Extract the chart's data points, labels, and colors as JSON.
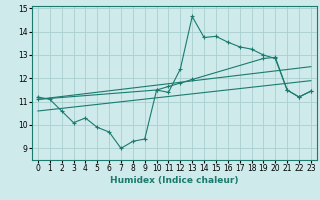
{
  "xlabel": "Humidex (Indice chaleur)",
  "bg_color": "#ceeaea",
  "grid_color": "#aacfcf",
  "line_color": "#1a7a6e",
  "xlim": [
    -0.5,
    23.5
  ],
  "ylim": [
    8.5,
    15.1
  ],
  "yticks": [
    9,
    10,
    11,
    12,
    13,
    14,
    15
  ],
  "xticks": [
    0,
    1,
    2,
    3,
    4,
    5,
    6,
    7,
    8,
    9,
    10,
    11,
    12,
    13,
    14,
    15,
    16,
    17,
    18,
    19,
    20,
    21,
    22,
    23
  ],
  "series": [
    {
      "x": [
        0,
        1,
        2,
        3,
        4,
        5,
        6,
        7,
        8,
        9,
        10,
        11,
        12,
        13,
        14,
        15,
        16,
        17,
        18,
        19,
        20,
        21,
        22,
        23
      ],
      "y": [
        11.2,
        11.1,
        10.6,
        10.1,
        10.3,
        9.9,
        9.7,
        9.0,
        9.3,
        9.4,
        11.5,
        11.4,
        12.4,
        14.65,
        13.75,
        13.8,
        13.55,
        13.35,
        13.25,
        13.0,
        12.85,
        11.5,
        11.2,
        11.45
      ],
      "marker_x": [
        0,
        1,
        2,
        3,
        4,
        5,
        6,
        7,
        8,
        9,
        10,
        11,
        12,
        13,
        14,
        15,
        16,
        17,
        18,
        19,
        20,
        21,
        22,
        23
      ]
    },
    {
      "x": [
        0,
        10,
        11,
        12,
        13,
        19,
        20,
        21,
        22,
        23
      ],
      "y": [
        11.1,
        11.5,
        11.65,
        11.8,
        11.95,
        12.85,
        12.9,
        11.5,
        11.2,
        11.45
      ],
      "marker_x": [
        0,
        10,
        11,
        12,
        13,
        19,
        20,
        21,
        22,
        23
      ]
    },
    {
      "x": [
        0,
        23
      ],
      "y": [
        11.1,
        12.5
      ],
      "marker_x": []
    },
    {
      "x": [
        0,
        23
      ],
      "y": [
        10.6,
        11.9
      ],
      "marker_x": []
    }
  ]
}
